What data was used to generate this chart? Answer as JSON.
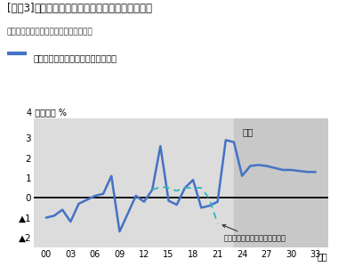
{
  "title_bracket": "[図表3]",
  "title_main": "消費者物価（生鮮食品を除く総合）の予測",
  "source": "資料：総務省統計局「消費者物価指数」",
  "legend_label": "消費者物価（生鮮食品を除く総合）",
  "ylabel_top": "4 前年度比 %",
  "xlabel_suffix": "年度",
  "yticks": [
    -2,
    -1,
    0,
    1,
    2,
    3
  ],
  "ytick_labels": [
    "▲2",
    "▲1",
    "0",
    "1",
    "2",
    "3"
  ],
  "xticks": [
    2000,
    2003,
    2006,
    2009,
    2012,
    2015,
    2018,
    2021,
    2024,
    2027,
    2030,
    2033
  ],
  "xtick_labels": [
    "00",
    "03",
    "06",
    "09",
    "12",
    "15",
    "18",
    "21",
    "24",
    "27",
    "30",
    "33"
  ],
  "ylim": [
    -2.5,
    4.0
  ],
  "xlim": [
    1998.5,
    2034.5
  ],
  "forecast_start": 2023,
  "forecast_label": "予測",
  "annotation_text": "消費税率引き上げの影響を除く",
  "bg_color": "#dcdcdc",
  "forecast_bg_color": "#c8c8c8",
  "line_color": "#4472c4",
  "dashed_line_color": "#2eb8b8",
  "zero_line_color": "#000000",
  "main_years": [
    2000,
    2001,
    2002,
    2003,
    2004,
    2005,
    2006,
    2007,
    2008,
    2009,
    2010,
    2011,
    2012,
    2013,
    2014,
    2015,
    2016,
    2017,
    2018,
    2019,
    2020,
    2021,
    2022,
    2023,
    2024,
    2025,
    2026,
    2027,
    2028,
    2029,
    2030,
    2031,
    2032,
    2033
  ],
  "main_values": [
    -1.0,
    -0.9,
    -0.6,
    -1.2,
    -0.3,
    -0.1,
    0.1,
    0.2,
    1.1,
    -1.7,
    -0.8,
    0.1,
    -0.2,
    0.4,
    2.6,
    -0.15,
    -0.35,
    0.5,
    0.9,
    -0.5,
    -0.4,
    -0.2,
    2.9,
    2.8,
    1.1,
    1.6,
    1.65,
    1.6,
    1.5,
    1.4,
    1.4,
    1.35,
    1.3,
    1.3
  ],
  "dashed_years": [
    2013,
    2014,
    2015,
    2016,
    2017,
    2018,
    2019,
    2020,
    2021
  ],
  "dashed_values": [
    0.4,
    0.55,
    0.5,
    0.35,
    0.5,
    0.5,
    0.5,
    -0.05,
    -1.3
  ]
}
